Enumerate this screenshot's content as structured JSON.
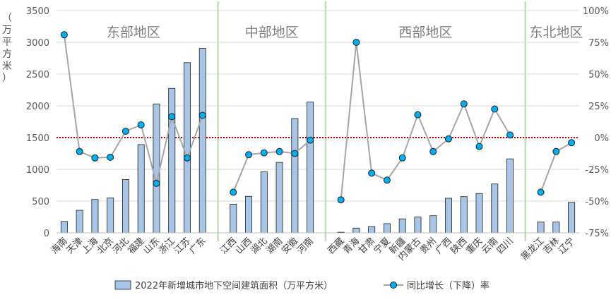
{
  "chart_data": {
    "type": "bar+line",
    "ylabel_left": "（万平方米）",
    "ylim_left": [
      0,
      3500
    ],
    "yticks_left": [
      "0",
      "500",
      "1000",
      "1500",
      "2000",
      "2500",
      "3000",
      "3500"
    ],
    "ylim_right": [
      -0.75,
      1.0
    ],
    "yticks_right": [
      "-75%",
      "-50%",
      "-25%",
      "0%",
      "25%",
      "50%",
      "75%",
      "100%"
    ],
    "reference_line": {
      "series": "同比增长（下降）率",
      "value": 0
    },
    "regions": [
      {
        "name": "东部地区",
        "start": 0,
        "end": 9
      },
      {
        "name": "中部地区",
        "start": 10,
        "end": 15
      },
      {
        "name": "西部地区",
        "start": 16,
        "end": 27
      },
      {
        "name": "东北地区",
        "start": 28,
        "end": 30
      }
    ],
    "categories": [
      "海南",
      "天津",
      "上海",
      "北京",
      "河北",
      "福建",
      "山东",
      "浙江",
      "江苏",
      "广东",
      "江西",
      "山西",
      "湖北",
      "湖南",
      "安徽",
      "河南",
      "西藏",
      "青海",
      "甘肃",
      "宁夏",
      "新疆",
      "内蒙古",
      "贵州",
      "广西",
      "陕西",
      "重庆",
      "云南",
      "四川",
      "黑龙江",
      "吉林",
      "辽宁"
    ],
    "series": [
      {
        "name": "2022年新增城市地下空间建筑面积（万平方米）",
        "axis": "left",
        "kind": "bar",
        "color": "#a7c5e6",
        "values": [
          180,
          355,
          525,
          550,
          840,
          1390,
          2030,
          2275,
          2680,
          2905,
          450,
          575,
          960,
          1110,
          1800,
          2060,
          10,
          75,
          100,
          145,
          220,
          250,
          270,
          545,
          570,
          620,
          770,
          1165,
          170,
          170,
          480
        ]
      },
      {
        "name": "同比增长（下降）率",
        "axis": "right",
        "kind": "line",
        "color": "#a6a6a6",
        "marker_color": "#00b0f0",
        "values": [
          0.81,
          -0.11,
          -0.16,
          -0.155,
          0.05,
          0.1,
          -0.36,
          0.165,
          -0.16,
          0.175,
          -0.43,
          -0.135,
          -0.12,
          -0.11,
          -0.125,
          -0.02,
          -0.49,
          0.75,
          -0.28,
          -0.335,
          -0.16,
          0.18,
          -0.11,
          -0.01,
          0.265,
          -0.07,
          0.225,
          0.02,
          -0.43,
          -0.11,
          -0.04
        ]
      }
    ],
    "legend_position": "bottom",
    "grid": "horizontal"
  }
}
